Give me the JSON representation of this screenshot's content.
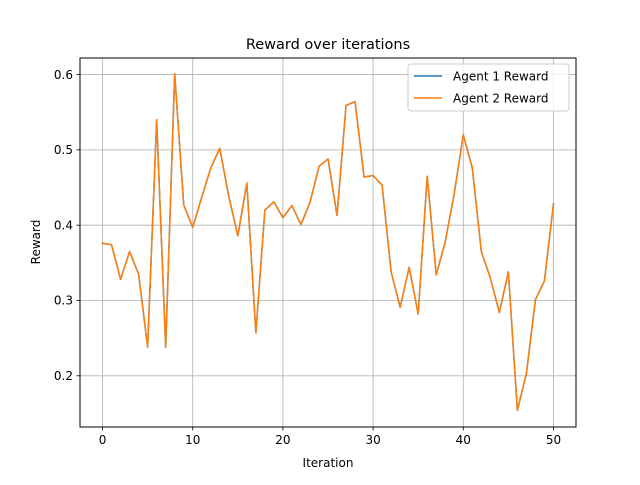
{
  "chart_data": {
    "type": "line",
    "title": "Reward over iterations",
    "xlabel": "Iteration",
    "ylabel": "Reward",
    "xlim": [
      -2.5,
      52.5
    ],
    "ylim": [
      0.132,
      0.622
    ],
    "xticks": [
      0,
      10,
      20,
      30,
      40,
      50
    ],
    "yticks": [
      0.2,
      0.3,
      0.4,
      0.5,
      0.6
    ],
    "grid": true,
    "legend_position": "top-right",
    "x": [
      0,
      1,
      2,
      3,
      4,
      5,
      6,
      7,
      8,
      9,
      10,
      11,
      12,
      13,
      14,
      15,
      16,
      17,
      18,
      19,
      20,
      21,
      22,
      23,
      24,
      25,
      26,
      27,
      28,
      29,
      30,
      31,
      32,
      33,
      34,
      35,
      36,
      37,
      38,
      39,
      40,
      41,
      42,
      43,
      44,
      45,
      46,
      47,
      48,
      49,
      50
    ],
    "series": [
      {
        "name": "Agent 1 Reward",
        "color": "#1f77b4",
        "values": [
          0.376,
          0.374,
          0.328,
          0.365,
          0.335,
          0.238,
          0.54,
          0.238,
          0.601,
          0.427,
          0.397,
          0.437,
          0.476,
          0.502,
          0.438,
          0.386,
          0.456,
          0.257,
          0.42,
          0.431,
          0.41,
          0.426,
          0.401,
          0.43,
          0.478,
          0.488,
          0.413,
          0.559,
          0.564,
          0.464,
          0.466,
          0.453,
          0.338,
          0.291,
          0.344,
          0.282,
          0.465,
          0.334,
          0.378,
          0.442,
          0.52,
          0.476,
          0.365,
          0.33,
          0.284,
          0.338,
          0.154,
          0.203,
          0.301,
          0.326,
          0.428
        ]
      },
      {
        "name": "Agent 2 Reward",
        "color": "#ff7f0e",
        "values": [
          0.376,
          0.374,
          0.328,
          0.365,
          0.335,
          0.238,
          0.54,
          0.238,
          0.601,
          0.427,
          0.397,
          0.437,
          0.476,
          0.502,
          0.438,
          0.386,
          0.456,
          0.257,
          0.42,
          0.431,
          0.41,
          0.426,
          0.401,
          0.43,
          0.478,
          0.488,
          0.413,
          0.559,
          0.564,
          0.464,
          0.466,
          0.453,
          0.338,
          0.291,
          0.344,
          0.282,
          0.465,
          0.334,
          0.378,
          0.442,
          0.52,
          0.476,
          0.365,
          0.33,
          0.284,
          0.338,
          0.154,
          0.203,
          0.301,
          0.326,
          0.428
        ]
      }
    ]
  }
}
